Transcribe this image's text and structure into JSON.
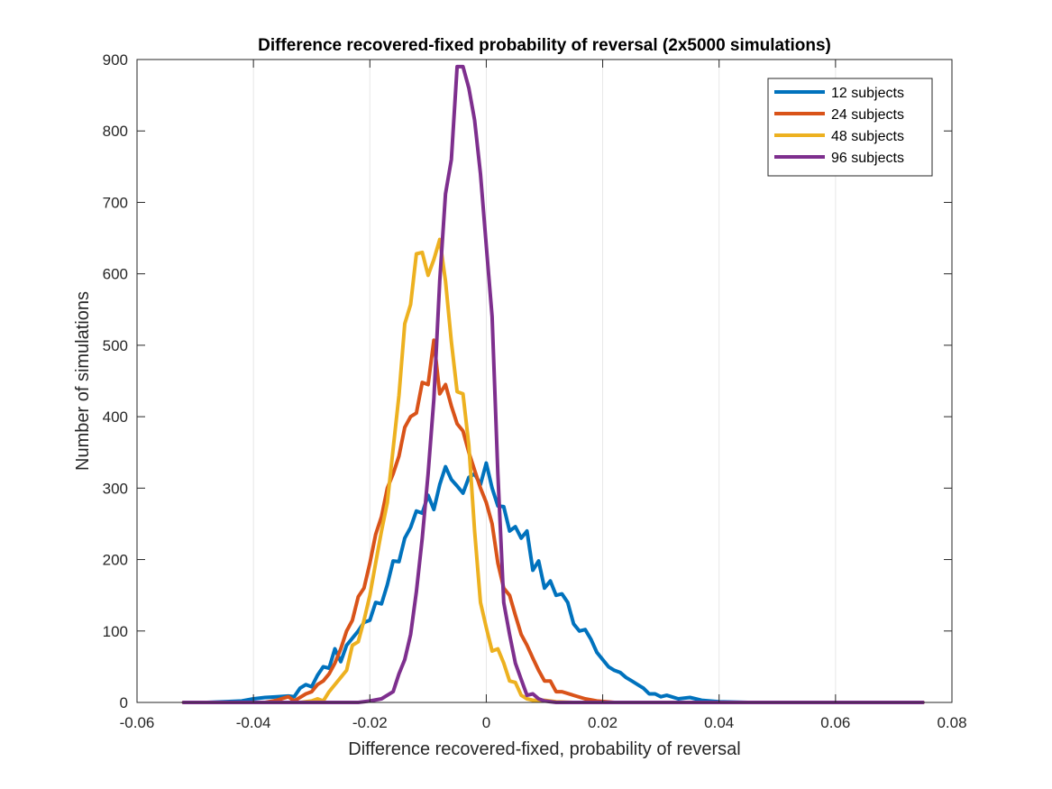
{
  "chart_data": {
    "type": "line",
    "title": "Difference recovered-fixed probability of reversal (2x5000 simulations)",
    "xlabel": "Difference recovered-fixed, probability of reversal",
    "ylabel": "Number of simulations",
    "xlim": [
      -0.06,
      0.08
    ],
    "ylim": [
      0,
      900
    ],
    "xticks": [
      -0.06,
      -0.04,
      -0.02,
      0,
      0.02,
      0.04,
      0.06,
      0.08
    ],
    "xtick_labels": [
      "-0.06",
      "-0.04",
      "-0.02",
      "0",
      "0.02",
      "0.04",
      "0.06",
      "0.08"
    ],
    "yticks": [
      0,
      100,
      200,
      300,
      400,
      500,
      600,
      700,
      800,
      900
    ],
    "ytick_labels": [
      "0",
      "100",
      "200",
      "300",
      "400",
      "500",
      "600",
      "700",
      "800",
      "900"
    ],
    "grid": "vertical",
    "legend_position": "top-right",
    "series": [
      {
        "name": "12 subjects",
        "color": "#0072BD",
        "points": [
          [
            -0.052,
            0
          ],
          [
            -0.048,
            0
          ],
          [
            -0.045,
            1
          ],
          [
            -0.042,
            2
          ],
          [
            -0.04,
            5
          ],
          [
            -0.038,
            7
          ],
          [
            -0.036,
            8
          ],
          [
            -0.034,
            9
          ],
          [
            -0.033,
            8
          ],
          [
            -0.032,
            20
          ],
          [
            -0.031,
            25
          ],
          [
            -0.03,
            22
          ],
          [
            -0.029,
            38
          ],
          [
            -0.028,
            50
          ],
          [
            -0.027,
            48
          ],
          [
            -0.026,
            75
          ],
          [
            -0.025,
            57
          ],
          [
            -0.024,
            80
          ],
          [
            -0.022,
            100
          ],
          [
            -0.021,
            112
          ],
          [
            -0.02,
            115
          ],
          [
            -0.019,
            140
          ],
          [
            -0.018,
            138
          ],
          [
            -0.017,
            165
          ],
          [
            -0.016,
            198
          ],
          [
            -0.015,
            197
          ],
          [
            -0.014,
            230
          ],
          [
            -0.013,
            245
          ],
          [
            -0.012,
            268
          ],
          [
            -0.011,
            265
          ],
          [
            -0.01,
            290
          ],
          [
            -0.009,
            270
          ],
          [
            -0.008,
            305
          ],
          [
            -0.007,
            330
          ],
          [
            -0.006,
            312
          ],
          [
            -0.005,
            303
          ],
          [
            -0.004,
            293
          ],
          [
            -0.003,
            315
          ],
          [
            -0.002,
            320
          ],
          [
            -0.001,
            305
          ],
          [
            0.0,
            335
          ],
          [
            0.001,
            300
          ],
          [
            0.002,
            275
          ],
          [
            0.003,
            274
          ],
          [
            0.004,
            240
          ],
          [
            0.005,
            246
          ],
          [
            0.006,
            230
          ],
          [
            0.007,
            240
          ],
          [
            0.008,
            185
          ],
          [
            0.009,
            198
          ],
          [
            0.01,
            160
          ],
          [
            0.011,
            170
          ],
          [
            0.012,
            150
          ],
          [
            0.013,
            152
          ],
          [
            0.014,
            140
          ],
          [
            0.015,
            110
          ],
          [
            0.016,
            100
          ],
          [
            0.017,
            102
          ],
          [
            0.018,
            88
          ],
          [
            0.019,
            70
          ],
          [
            0.02,
            60
          ],
          [
            0.021,
            50
          ],
          [
            0.022,
            45
          ],
          [
            0.023,
            42
          ],
          [
            0.024,
            35
          ],
          [
            0.025,
            30
          ],
          [
            0.026,
            25
          ],
          [
            0.027,
            20
          ],
          [
            0.028,
            12
          ],
          [
            0.029,
            12
          ],
          [
            0.03,
            8
          ],
          [
            0.031,
            10
          ],
          [
            0.033,
            5
          ],
          [
            0.035,
            7
          ],
          [
            0.037,
            3
          ],
          [
            0.04,
            1
          ],
          [
            0.045,
            0
          ],
          [
            0.05,
            0
          ],
          [
            0.055,
            0
          ],
          [
            0.06,
            0
          ],
          [
            0.065,
            0
          ],
          [
            0.075,
            0
          ]
        ]
      },
      {
        "name": "24 subjects",
        "color": "#D95319",
        "points": [
          [
            -0.052,
            0
          ],
          [
            -0.044,
            0
          ],
          [
            -0.038,
            0
          ],
          [
            -0.036,
            3
          ],
          [
            -0.034,
            8
          ],
          [
            -0.033,
            2
          ],
          [
            -0.031,
            12
          ],
          [
            -0.03,
            15
          ],
          [
            -0.029,
            25
          ],
          [
            -0.028,
            30
          ],
          [
            -0.027,
            40
          ],
          [
            -0.026,
            55
          ],
          [
            -0.025,
            75
          ],
          [
            -0.024,
            100
          ],
          [
            -0.023,
            115
          ],
          [
            -0.022,
            148
          ],
          [
            -0.021,
            160
          ],
          [
            -0.02,
            195
          ],
          [
            -0.019,
            235
          ],
          [
            -0.018,
            260
          ],
          [
            -0.017,
            300
          ],
          [
            -0.016,
            320
          ],
          [
            -0.015,
            345
          ],
          [
            -0.014,
            385
          ],
          [
            -0.013,
            400
          ],
          [
            -0.012,
            405
          ],
          [
            -0.011,
            448
          ],
          [
            -0.01,
            445
          ],
          [
            -0.009,
            507
          ],
          [
            -0.008,
            432
          ],
          [
            -0.007,
            445
          ],
          [
            -0.006,
            415
          ],
          [
            -0.005,
            390
          ],
          [
            -0.004,
            380
          ],
          [
            -0.003,
            350
          ],
          [
            -0.002,
            325
          ],
          [
            -0.001,
            300
          ],
          [
            0.0,
            280
          ],
          [
            0.001,
            250
          ],
          [
            0.002,
            195
          ],
          [
            0.003,
            160
          ],
          [
            0.004,
            150
          ],
          [
            0.005,
            122
          ],
          [
            0.006,
            95
          ],
          [
            0.007,
            80
          ],
          [
            0.008,
            62
          ],
          [
            0.009,
            45
          ],
          [
            0.01,
            30
          ],
          [
            0.011,
            30
          ],
          [
            0.012,
            15
          ],
          [
            0.013,
            15
          ],
          [
            0.015,
            10
          ],
          [
            0.017,
            5
          ],
          [
            0.019,
            2
          ],
          [
            0.022,
            0
          ],
          [
            0.03,
            0
          ],
          [
            0.04,
            0
          ],
          [
            0.05,
            0
          ],
          [
            0.06,
            0
          ],
          [
            0.07,
            0
          ],
          [
            0.075,
            0
          ]
        ]
      },
      {
        "name": "48 subjects",
        "color": "#EDB120",
        "points": [
          [
            -0.052,
            0
          ],
          [
            -0.04,
            0
          ],
          [
            -0.032,
            0
          ],
          [
            -0.03,
            2
          ],
          [
            -0.029,
            5
          ],
          [
            -0.028,
            2
          ],
          [
            -0.027,
            15
          ],
          [
            -0.026,
            25
          ],
          [
            -0.025,
            35
          ],
          [
            -0.024,
            45
          ],
          [
            -0.023,
            80
          ],
          [
            -0.022,
            85
          ],
          [
            -0.021,
            115
          ],
          [
            -0.02,
            150
          ],
          [
            -0.019,
            195
          ],
          [
            -0.018,
            240
          ],
          [
            -0.017,
            280
          ],
          [
            -0.016,
            355
          ],
          [
            -0.015,
            430
          ],
          [
            -0.014,
            530
          ],
          [
            -0.013,
            557
          ],
          [
            -0.012,
            628
          ],
          [
            -0.011,
            630
          ],
          [
            -0.01,
            598
          ],
          [
            -0.009,
            620
          ],
          [
            -0.008,
            648
          ],
          [
            -0.007,
            590
          ],
          [
            -0.006,
            505
          ],
          [
            -0.005,
            435
          ],
          [
            -0.004,
            432
          ],
          [
            -0.003,
            360
          ],
          [
            -0.002,
            240
          ],
          [
            -0.001,
            140
          ],
          [
            0.0,
            105
          ],
          [
            0.001,
            72
          ],
          [
            0.002,
            75
          ],
          [
            0.003,
            55
          ],
          [
            0.004,
            30
          ],
          [
            0.005,
            28
          ],
          [
            0.006,
            10
          ],
          [
            0.007,
            5
          ],
          [
            0.008,
            3
          ],
          [
            0.01,
            3
          ],
          [
            0.012,
            1
          ],
          [
            0.015,
            0
          ],
          [
            0.02,
            0
          ],
          [
            0.03,
            0
          ],
          [
            0.04,
            0
          ],
          [
            0.05,
            0
          ],
          [
            0.06,
            0
          ],
          [
            0.075,
            0
          ]
        ]
      },
      {
        "name": "96 subjects",
        "color": "#7E2F8E",
        "points": [
          [
            -0.052,
            0
          ],
          [
            -0.04,
            0
          ],
          [
            -0.03,
            0
          ],
          [
            -0.022,
            0
          ],
          [
            -0.02,
            2
          ],
          [
            -0.018,
            5
          ],
          [
            -0.016,
            15
          ],
          [
            -0.015,
            40
          ],
          [
            -0.014,
            60
          ],
          [
            -0.013,
            95
          ],
          [
            -0.012,
            155
          ],
          [
            -0.011,
            230
          ],
          [
            -0.01,
            320
          ],
          [
            -0.009,
            425
          ],
          [
            -0.008,
            590
          ],
          [
            -0.007,
            712
          ],
          [
            -0.006,
            760
          ],
          [
            -0.005,
            890
          ],
          [
            -0.004,
            890
          ],
          [
            -0.003,
            860
          ],
          [
            -0.002,
            815
          ],
          [
            -0.001,
            740
          ],
          [
            0.0,
            640
          ],
          [
            0.001,
            540
          ],
          [
            0.002,
            320
          ],
          [
            0.003,
            140
          ],
          [
            0.004,
            95
          ],
          [
            0.005,
            55
          ],
          [
            0.006,
            32
          ],
          [
            0.007,
            10
          ],
          [
            0.008,
            12
          ],
          [
            0.009,
            5
          ],
          [
            0.01,
            2
          ],
          [
            0.012,
            0
          ],
          [
            0.02,
            0
          ],
          [
            0.03,
            0
          ],
          [
            0.04,
            0
          ],
          [
            0.05,
            0
          ],
          [
            0.06,
            0
          ],
          [
            0.075,
            0
          ]
        ]
      }
    ]
  }
}
